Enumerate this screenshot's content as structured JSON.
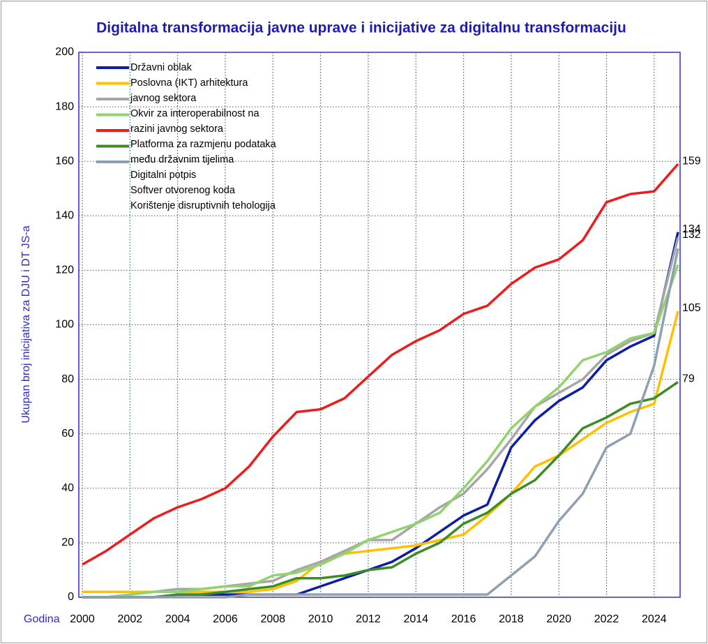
{
  "chart_data": {
    "type": "line",
    "title": "Digitalna transformacija javne uprave i inicijative za digitalnu transformaciju",
    "ylabel": "Ukupan broj inicijativa za DJU i DT JS-a",
    "xlabel": "Godina",
    "x": [
      2000,
      2001,
      2002,
      2003,
      2004,
      2005,
      2006,
      2007,
      2008,
      2009,
      2010,
      2011,
      2012,
      2013,
      2014,
      2015,
      2016,
      2017,
      2018,
      2019,
      2020,
      2021,
      2022,
      2023,
      2024,
      2025
    ],
    "xlim": [
      2000,
      2025
    ],
    "xticks": [
      2000,
      2002,
      2004,
      2006,
      2008,
      2010,
      2012,
      2014,
      2016,
      2018,
      2020,
      2022,
      2024
    ],
    "ylim": [
      0,
      200
    ],
    "yticks": [
      0,
      20,
      40,
      60,
      80,
      100,
      120,
      140,
      160,
      180,
      200
    ],
    "grid": true,
    "legend": "upper left",
    "series": [
      {
        "name": "Državni oblak",
        "color": "#0c1ea8",
        "end_label": true,
        "values": [
          0,
          0,
          0,
          0,
          1,
          1,
          1,
          1,
          1,
          1,
          4,
          7,
          10,
          13,
          18,
          24,
          30,
          34,
          55,
          65,
          72,
          77,
          87,
          92,
          96,
          134
        ]
      },
      {
        "name": "Poslovna (IKT) arhitektura javnog sektora",
        "color": "#ffc000",
        "end_label": true,
        "values": [
          2,
          2,
          2,
          2,
          2,
          2,
          2,
          2,
          3,
          6,
          13,
          16,
          17,
          18,
          19,
          21,
          23,
          30,
          38,
          48,
          52,
          58,
          64,
          68,
          71,
          105
        ]
      },
      {
        "name": "Okvir za interoperabilnost na razini javnog sektora",
        "color": "#a6a6a6",
        "end_label": true,
        "values": [
          0,
          0,
          1,
          2,
          3,
          3,
          4,
          5,
          6,
          10,
          13,
          17,
          21,
          21,
          27,
          33,
          38,
          47,
          58,
          70,
          75,
          80,
          89,
          94,
          97,
          132
        ]
      },
      {
        "name": "Platforma za razmjenu podataka među državnim tijelima",
        "color": "#92d36e",
        "end_label": false,
        "values": [
          0,
          0,
          1,
          2,
          2,
          3,
          4,
          4,
          8,
          9,
          12,
          16,
          21,
          24,
          27,
          31,
          40,
          50,
          62,
          70,
          77,
          87,
          90,
          95,
          97,
          122
        ]
      },
      {
        "name": "Digitalni potpis",
        "color": "#ee1c1c",
        "end_label": true,
        "values": [
          12,
          17,
          23,
          29,
          33,
          36,
          40,
          48,
          59,
          68,
          69,
          73,
          81,
          89,
          94,
          98,
          104,
          107,
          115,
          121,
          124,
          131,
          145,
          148,
          149,
          159
        ]
      },
      {
        "name": "Softver otvorenog koda",
        "color": "#3c8c28",
        "end_label": true,
        "values": [
          0,
          0,
          0,
          0,
          1,
          1,
          2,
          3,
          4,
          7,
          7,
          8,
          10,
          11,
          16,
          20,
          27,
          31,
          38,
          43,
          52,
          62,
          66,
          71,
          73,
          79
        ]
      },
      {
        "name": "Korištenje disruptivnih tehologija",
        "color": "#8ea0b2",
        "end_label": false,
        "values": [
          0,
          0,
          0,
          0,
          0,
          0,
          0,
          1,
          1,
          1,
          1,
          1,
          1,
          1,
          1,
          1,
          1,
          1,
          8,
          15,
          28,
          38,
          55,
          60,
          85,
          128
        ]
      }
    ]
  }
}
